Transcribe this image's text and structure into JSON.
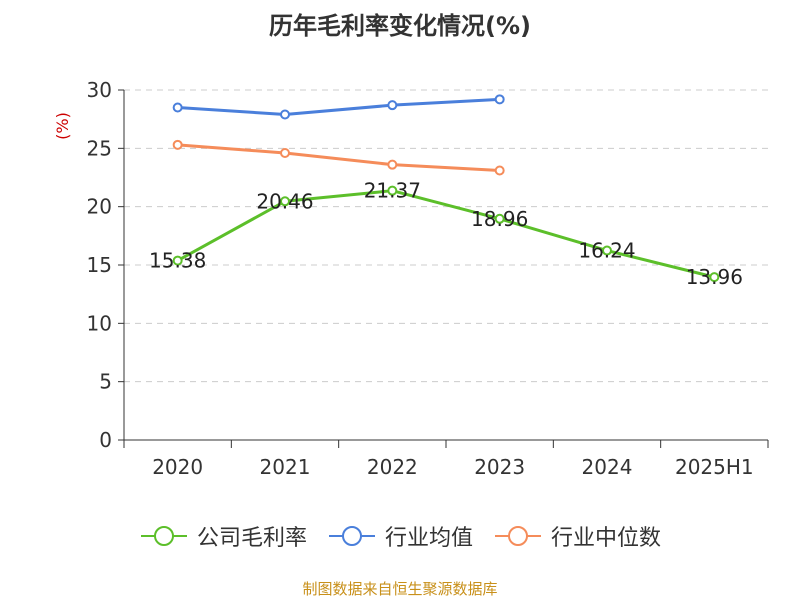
{
  "title": "历年毛利率变化情况(%)",
  "source": "制图数据来自恒生聚源数据库",
  "colors": {
    "grid": "#cccccc",
    "axis": "#333333",
    "unit_label": "#cc0000"
  },
  "chart_data": {
    "type": "line",
    "title": "历年毛利率变化情况(%)",
    "ylabel": "(%)",
    "ylim": [
      0,
      30
    ],
    "yticks": [
      0,
      5,
      10,
      15,
      20,
      25,
      30
    ],
    "grid": true,
    "legend_position": "bottom",
    "categories": [
      "2020",
      "2021",
      "2022",
      "2023",
      "2024",
      "2025H1"
    ],
    "series": [
      {
        "name": "公司毛利率",
        "color": "#5cbf2a",
        "values": [
          15.38,
          20.46,
          21.37,
          18.96,
          16.24,
          13.96
        ],
        "labels": [
          "15.38",
          "20.46",
          "21.37",
          "18.96",
          "16.24",
          "13.96"
        ]
      },
      {
        "name": "行业均值",
        "color": "#4a7fdb",
        "values": [
          28.5,
          27.9,
          28.7,
          29.2,
          null,
          null
        ]
      },
      {
        "name": "行业中位数",
        "color": "#f58c5a",
        "values": [
          25.3,
          24.6,
          23.6,
          23.1,
          null,
          null
        ]
      }
    ]
  }
}
